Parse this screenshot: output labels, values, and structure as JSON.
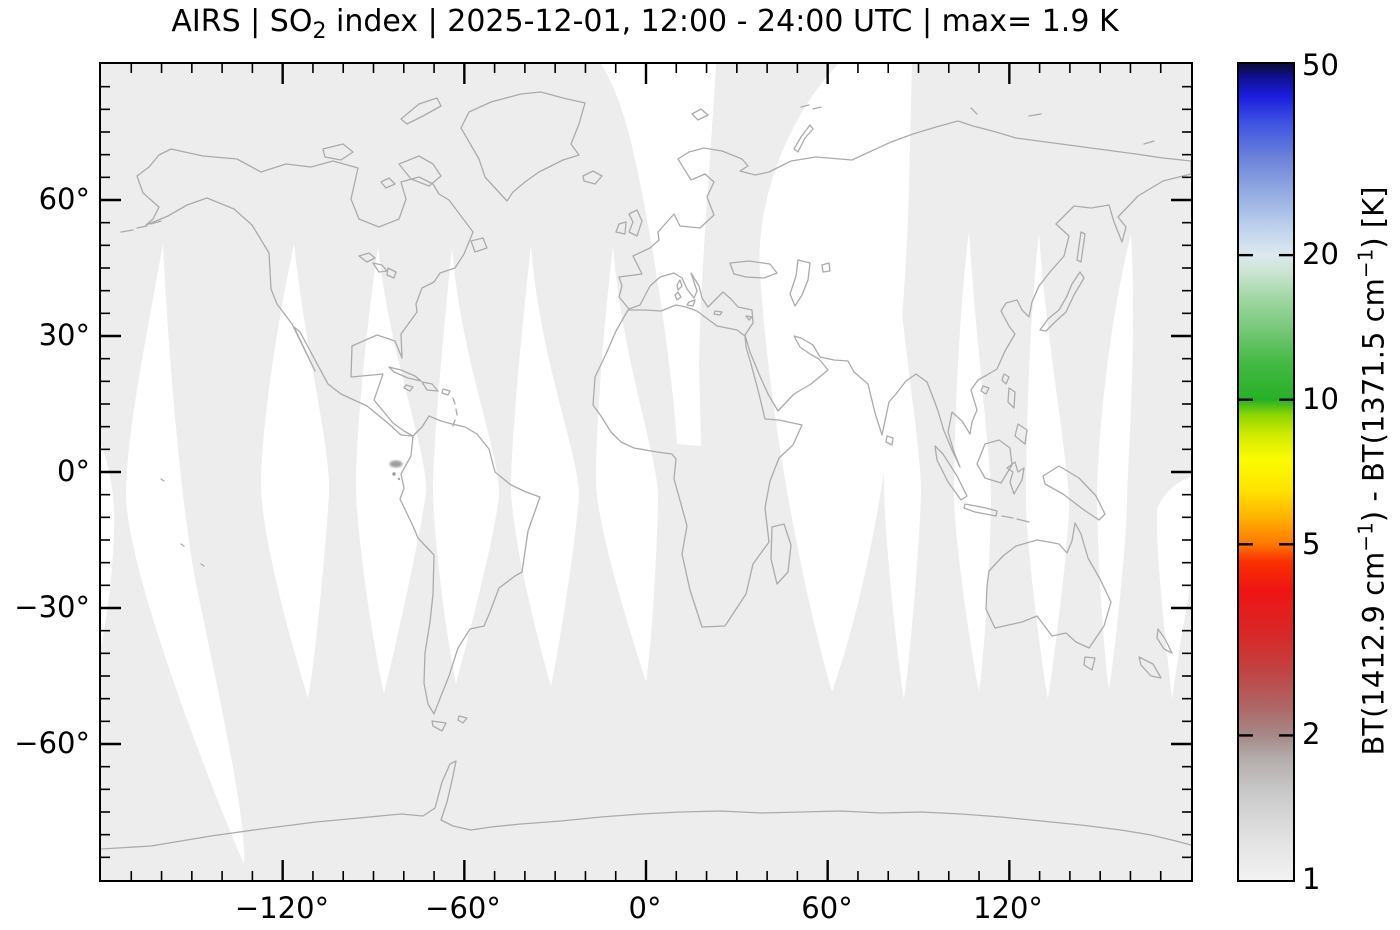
{
  "title": {
    "part1": "AIRS | SO",
    "sub": "2",
    "part2": " index | 2025-12-01, 12:00 - 24:00 UTC | max= 1.9 K"
  },
  "axes": {
    "x_ticks": [
      {
        "label": "−120°"
      },
      {
        "label": "−60°"
      },
      {
        "label": "0°"
      },
      {
        "label": "60°"
      },
      {
        "label": "120°"
      }
    ],
    "y_ticks": [
      {
        "label": "60°"
      },
      {
        "label": "30°"
      },
      {
        "label": "0°"
      },
      {
        "label": "−30°"
      },
      {
        "label": "−60°"
      }
    ]
  },
  "colorbar": {
    "ticks": [
      {
        "label": "50"
      },
      {
        "label": "20"
      },
      {
        "label": "10"
      },
      {
        "label": "5"
      },
      {
        "label": "2"
      },
      {
        "label": "1"
      }
    ],
    "label": {
      "p1": "BT(1412.9 cm",
      "s1": "−1",
      "p2": ") - BT(1371.5 cm",
      "s2": "−1",
      "p3": ") [K]"
    }
  },
  "chart_data": {
    "type": "heatmap",
    "title": "AIRS | SO2 index | 2025-12-01, 12:00 - 24:00 UTC | max= 1.9 K",
    "instrument": "AIRS",
    "quantity": "SO2 index",
    "date": "2025-12-01",
    "time_window_utc": "12:00 - 24:00",
    "max_value_K": 1.9,
    "projection": "global cylindrical world map",
    "xlim": [
      -180,
      180
    ],
    "ylim": [
      -90,
      90
    ],
    "x_major_ticks_deg": [
      -120,
      -60,
      0,
      60,
      120
    ],
    "x_minor_step_deg": 10,
    "y_major_ticks_deg": [
      60,
      30,
      0,
      -30,
      -60
    ],
    "y_minor_step_deg": 5,
    "grid": false,
    "map_background_color": "#ededed",
    "coastline_color": "#ababab",
    "no_data_color": "#ffffff",
    "colorbar": {
      "label": "BT(1412.9 cm-1) - BT(1371.5 cm-1) [K]",
      "units": "K",
      "scale": "log",
      "range": [
        1,
        50
      ],
      "tick_values": [
        1,
        2,
        5,
        10,
        20,
        50
      ],
      "gradient_stops": [
        {
          "v": 1,
          "c": "#f2f2f2"
        },
        {
          "v": 1.2,
          "c": "#e3e3e3"
        },
        {
          "v": 1.5,
          "c": "#cbcbcb"
        },
        {
          "v": 1.8,
          "c": "#b4abab"
        },
        {
          "v": 2,
          "c": "#a68888"
        },
        {
          "v": 2.3,
          "c": "#ae6565"
        },
        {
          "v": 2.7,
          "c": "#c04545"
        },
        {
          "v": 3.2,
          "c": "#d62929"
        },
        {
          "v": 4,
          "c": "#ef1414"
        },
        {
          "v": 4.6,
          "c": "#fb3000"
        },
        {
          "v": 5,
          "c": "#fd7800"
        },
        {
          "v": 5.7,
          "c": "#ffb300"
        },
        {
          "v": 6.5,
          "c": "#ffe400"
        },
        {
          "v": 7.5,
          "c": "#fbfb00"
        },
        {
          "v": 8.5,
          "c": "#cfe900"
        },
        {
          "v": 9.3,
          "c": "#8cd600"
        },
        {
          "v": 10,
          "c": "#27b027"
        },
        {
          "v": 12,
          "c": "#44ba44"
        },
        {
          "v": 14,
          "c": "#77c877"
        },
        {
          "v": 16.5,
          "c": "#a5d8a8"
        },
        {
          "v": 18.5,
          "c": "#cce4d4"
        },
        {
          "v": 20,
          "c": "#dde9f0"
        },
        {
          "v": 23,
          "c": "#bccfec"
        },
        {
          "v": 27,
          "c": "#93abe2"
        },
        {
          "v": 32,
          "c": "#6b82d9"
        },
        {
          "v": 38,
          "c": "#3b50e3"
        },
        {
          "v": 43,
          "c": "#1b1bdc"
        },
        {
          "v": 47,
          "c": "#10108f"
        },
        {
          "v": 50,
          "c": "#0b0b3a"
        }
      ]
    },
    "detections": [
      {
        "lon_deg": -82,
        "lat_deg": 1,
        "value_K": 1.9,
        "note": "faint gray SO2 smudge off Ecuador coast"
      }
    ],
    "notes": "Global map almost entirely light gray (SO2 index <= 1 K). White spindle-shaped wedges are gaps between satellite swaths (no data in the 12:00-24:00 UTC window)."
  }
}
